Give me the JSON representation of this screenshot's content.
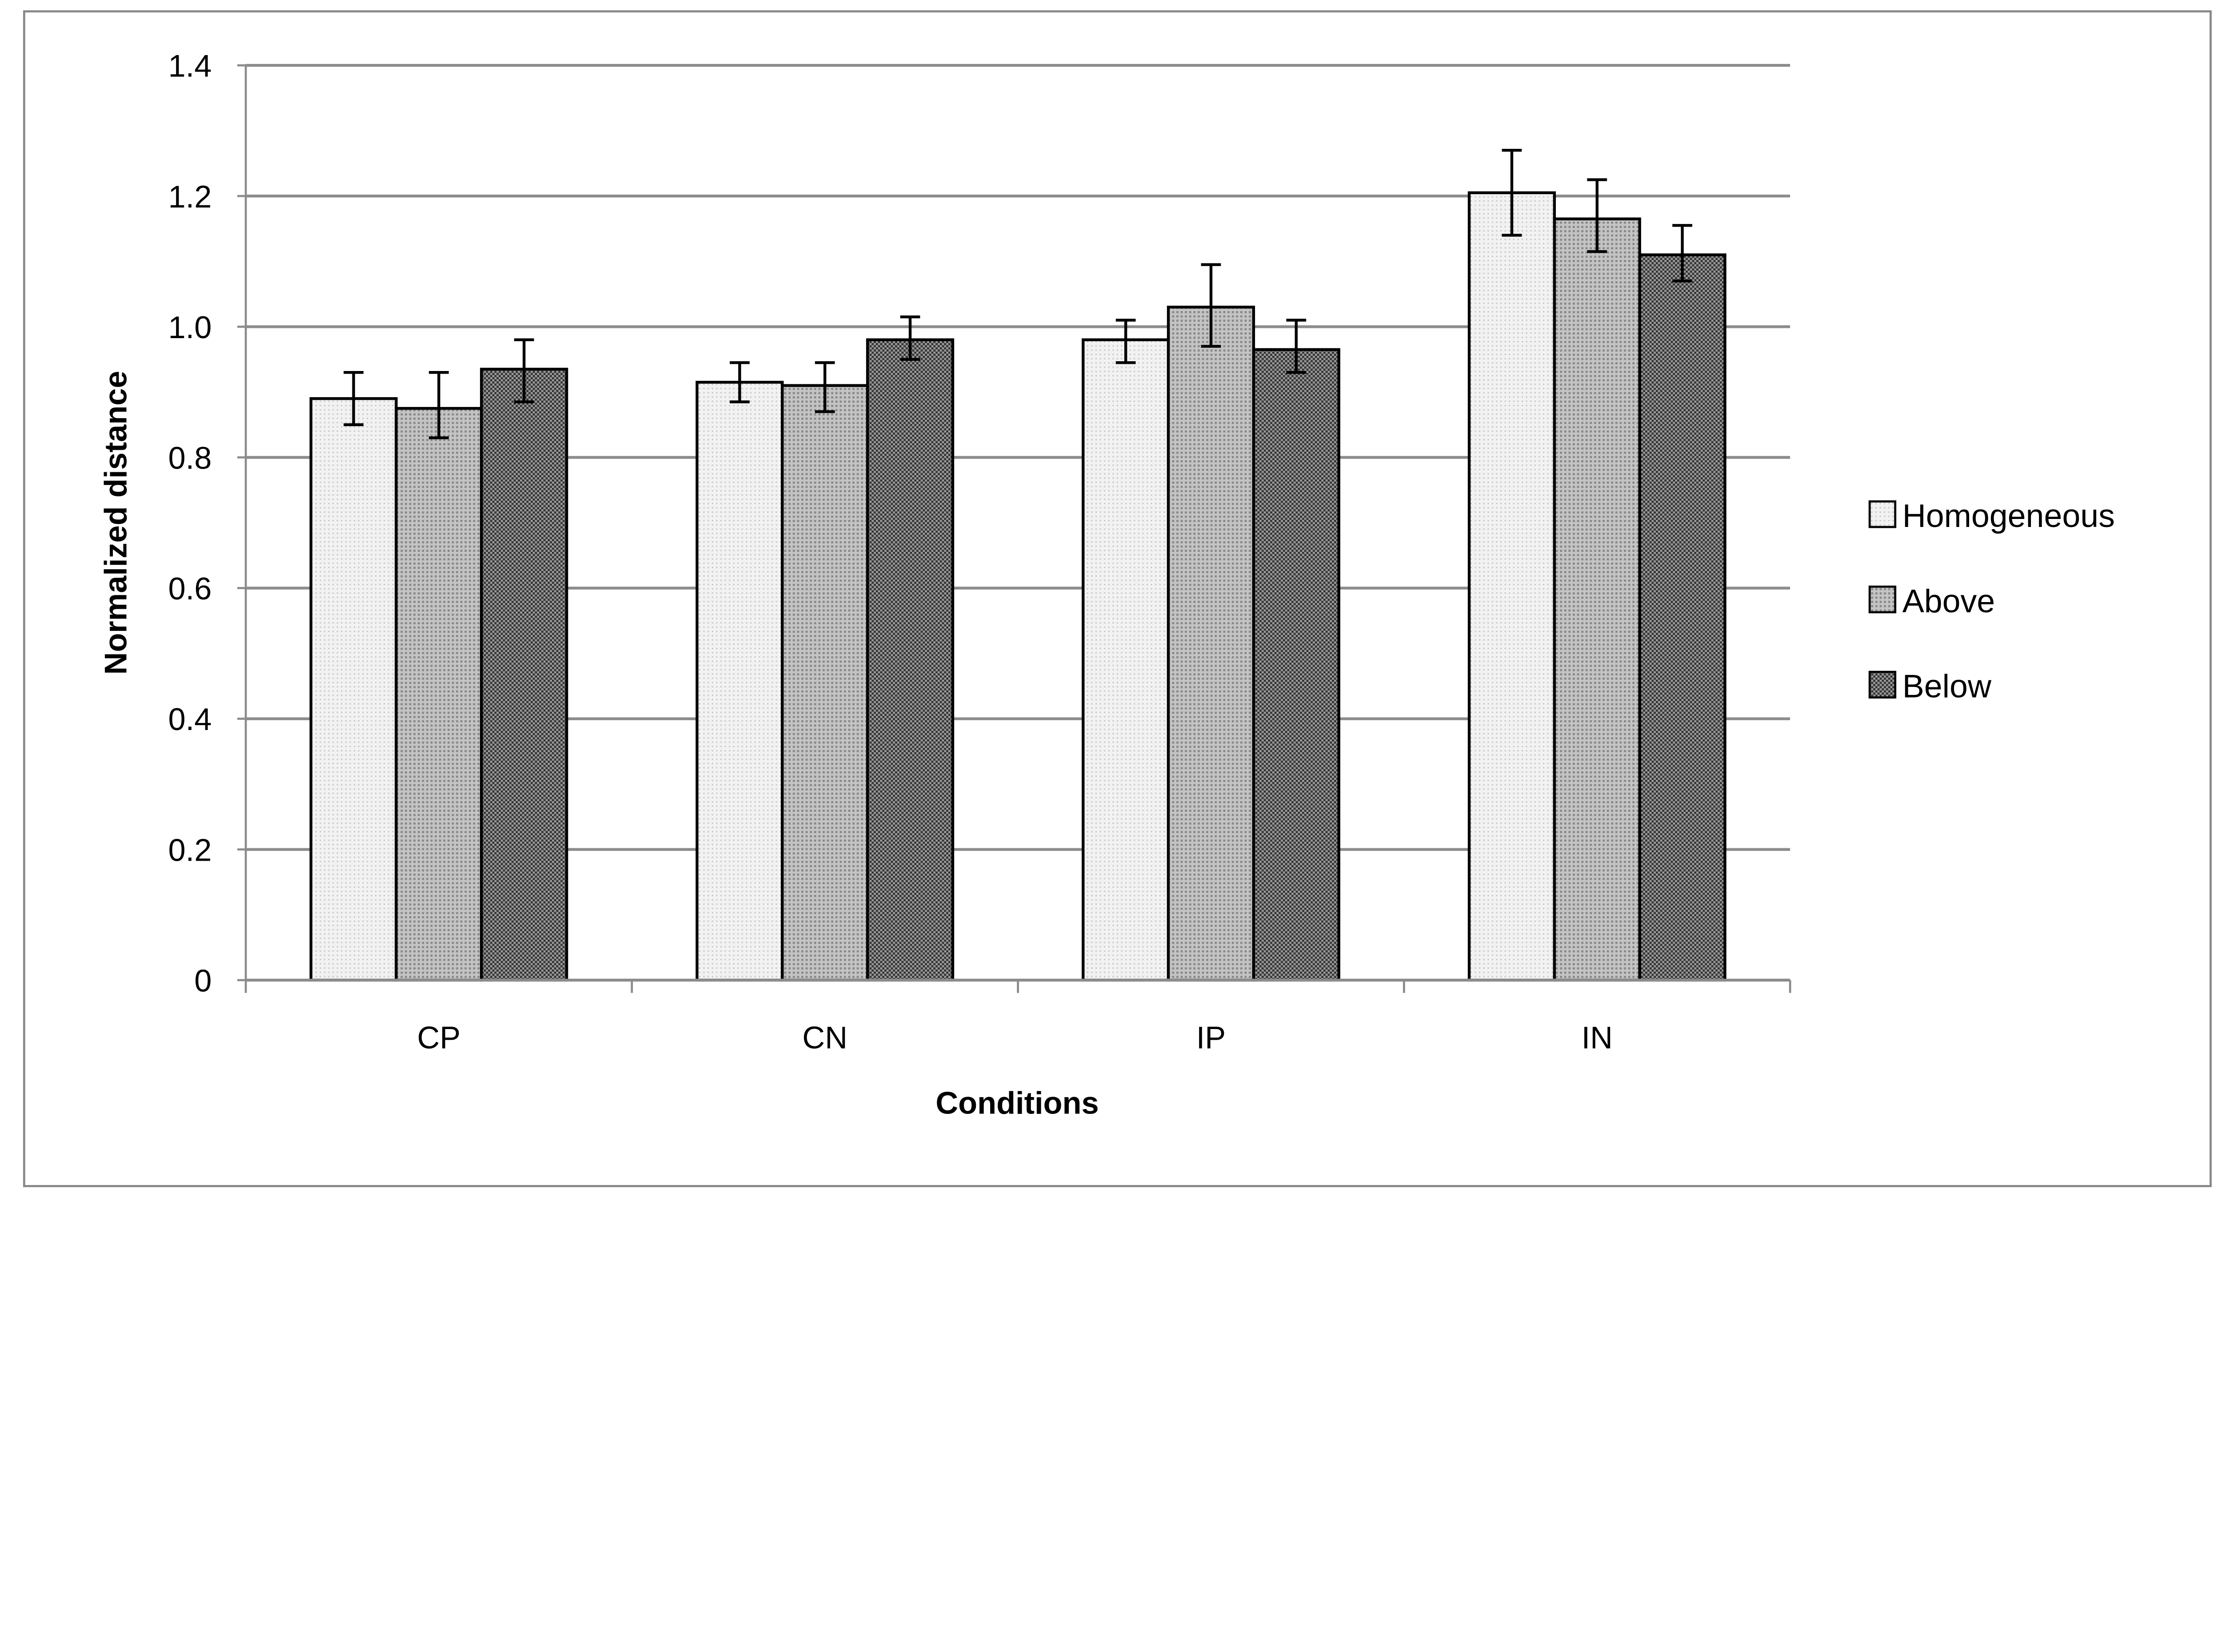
{
  "chart_data": {
    "type": "bar",
    "title": "",
    "xlabel": "Conditions",
    "ylabel": "Normalized distance",
    "ylim": [
      0,
      1.4
    ],
    "yticks": [
      "0",
      "0.2",
      "0.4",
      "0.6",
      "0.8",
      "1.0",
      "1.2",
      "1.4"
    ],
    "grid": true,
    "legend_position": "right",
    "categories": [
      "CP",
      "CN",
      "IP",
      "IN"
    ],
    "series": [
      {
        "name": "Homogeneous",
        "pattern": "light-dots",
        "values": [
          0.89,
          0.915,
          0.98,
          1.205
        ],
        "err_low": [
          0.85,
          0.885,
          0.945,
          1.14
        ],
        "err_high": [
          0.93,
          0.945,
          1.01,
          1.27
        ]
      },
      {
        "name": "Above",
        "pattern": "medium-dots",
        "values": [
          0.875,
          0.91,
          1.03,
          1.165
        ],
        "err_low": [
          0.83,
          0.87,
          0.97,
          1.115
        ],
        "err_high": [
          0.93,
          0.945,
          1.095,
          1.225
        ]
      },
      {
        "name": "Below",
        "pattern": "dark-checker",
        "values": [
          0.935,
          0.98,
          0.965,
          1.11
        ],
        "err_low": [
          0.885,
          0.95,
          0.93,
          1.07
        ],
        "err_high": [
          0.98,
          1.015,
          1.01,
          1.155
        ]
      }
    ]
  }
}
